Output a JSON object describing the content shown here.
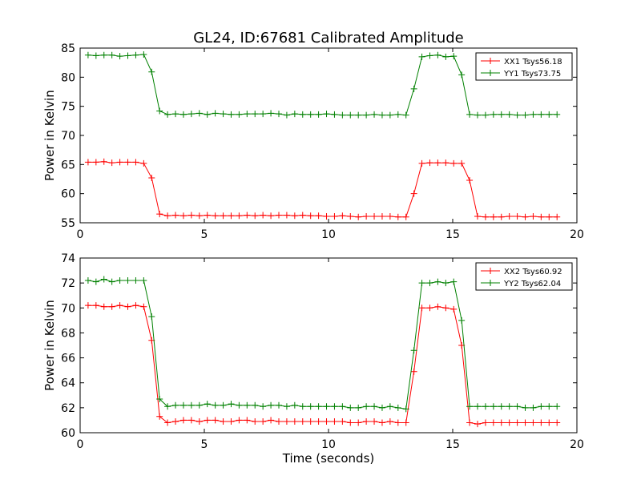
{
  "chart_data": [
    {
      "type": "line",
      "title": "GL24, ID:67681 Calibrated Amplitude",
      "xlabel": "",
      "ylabel": "Power in Kelvin",
      "xlim": [
        0,
        20
      ],
      "ylim": [
        55,
        85
      ],
      "xticks": [
        0,
        5,
        10,
        15,
        20
      ],
      "yticks": [
        55,
        60,
        65,
        70,
        75,
        80,
        85
      ],
      "legend_position": "top-right",
      "x": [
        0.32,
        0.64,
        0.96,
        1.28,
        1.6,
        1.92,
        2.24,
        2.56,
        2.88,
        3.2,
        3.52,
        3.84,
        4.16,
        4.48,
        4.8,
        5.12,
        5.44,
        5.76,
        6.08,
        6.4,
        6.72,
        7.04,
        7.36,
        7.68,
        8.0,
        8.32,
        8.64,
        8.96,
        9.28,
        9.6,
        9.92,
        10.24,
        10.56,
        10.88,
        11.2,
        11.52,
        11.84,
        12.16,
        12.48,
        12.8,
        13.12,
        13.44,
        13.76,
        14.08,
        14.4,
        14.72,
        15.04,
        15.36,
        15.68,
        16.0,
        16.32,
        16.64,
        16.96,
        17.28,
        17.6,
        17.92,
        18.24,
        18.56,
        18.88,
        19.2
      ],
      "series": [
        {
          "name": "XX1 Tsys56.18",
          "color": "#ff0000",
          "values": [
            65.4,
            65.4,
            65.5,
            65.3,
            65.4,
            65.4,
            65.4,
            65.2,
            62.7,
            56.5,
            56.2,
            56.3,
            56.2,
            56.3,
            56.2,
            56.3,
            56.2,
            56.2,
            56.2,
            56.2,
            56.3,
            56.2,
            56.3,
            56.2,
            56.3,
            56.3,
            56.2,
            56.3,
            56.2,
            56.2,
            56.1,
            56.1,
            56.2,
            56.1,
            56.0,
            56.1,
            56.1,
            56.1,
            56.1,
            56.0,
            56.0,
            60.0,
            65.2,
            65.3,
            65.3,
            65.3,
            65.2,
            65.2,
            62.3,
            56.1,
            56.0,
            56.0,
            56.0,
            56.1,
            56.1,
            56.0,
            56.1,
            56.0,
            56.0,
            56.0
          ]
        },
        {
          "name": "YY1 Tsys73.75",
          "color": "#008000",
          "values": [
            83.8,
            83.7,
            83.8,
            83.8,
            83.6,
            83.7,
            83.8,
            83.9,
            80.9,
            74.2,
            73.6,
            73.7,
            73.6,
            73.7,
            73.8,
            73.6,
            73.8,
            73.7,
            73.6,
            73.6,
            73.7,
            73.7,
            73.7,
            73.8,
            73.7,
            73.5,
            73.7,
            73.6,
            73.6,
            73.6,
            73.7,
            73.6,
            73.5,
            73.5,
            73.5,
            73.5,
            73.6,
            73.5,
            73.5,
            73.6,
            73.5,
            78.0,
            83.5,
            83.7,
            83.8,
            83.5,
            83.6,
            80.4,
            73.6,
            73.5,
            73.5,
            73.6,
            73.6,
            73.6,
            73.5,
            73.5,
            73.6,
            73.6,
            73.6,
            73.6
          ]
        }
      ]
    },
    {
      "type": "line",
      "title": "",
      "xlabel": "Time (seconds)",
      "ylabel": "Power in Kelvin",
      "xlim": [
        0,
        20
      ],
      "ylim": [
        60,
        74
      ],
      "xticks": [
        0,
        5,
        10,
        15,
        20
      ],
      "yticks": [
        60,
        62,
        64,
        66,
        68,
        70,
        72,
        74
      ],
      "legend_position": "top-right",
      "x": [
        0.32,
        0.64,
        0.96,
        1.28,
        1.6,
        1.92,
        2.24,
        2.56,
        2.88,
        3.2,
        3.52,
        3.84,
        4.16,
        4.48,
        4.8,
        5.12,
        5.44,
        5.76,
        6.08,
        6.4,
        6.72,
        7.04,
        7.36,
        7.68,
        8.0,
        8.32,
        8.64,
        8.96,
        9.28,
        9.6,
        9.92,
        10.24,
        10.56,
        10.88,
        11.2,
        11.52,
        11.84,
        12.16,
        12.48,
        12.8,
        13.12,
        13.44,
        13.76,
        14.08,
        14.4,
        14.72,
        15.04,
        15.36,
        15.68,
        16.0,
        16.32,
        16.64,
        16.96,
        17.28,
        17.6,
        17.92,
        18.24,
        18.56,
        18.88,
        19.2
      ],
      "series": [
        {
          "name": "XX2 Tsys60.92",
          "color": "#ff0000",
          "values": [
            70.2,
            70.2,
            70.1,
            70.1,
            70.2,
            70.1,
            70.2,
            70.1,
            67.4,
            61.3,
            60.8,
            60.9,
            61.0,
            61.0,
            60.9,
            61.0,
            61.0,
            60.9,
            60.9,
            61.0,
            61.0,
            60.9,
            60.9,
            61.0,
            60.9,
            60.9,
            60.9,
            60.9,
            60.9,
            60.9,
            60.9,
            60.9,
            60.9,
            60.8,
            60.8,
            60.9,
            60.9,
            60.8,
            60.9,
            60.8,
            60.8,
            64.9,
            70.0,
            70.0,
            70.1,
            70.0,
            69.9,
            67.0,
            60.8,
            60.7,
            60.8,
            60.8,
            60.8,
            60.8,
            60.8,
            60.8,
            60.8,
            60.8,
            60.8,
            60.8
          ]
        },
        {
          "name": "YY2 Tsys62.04",
          "color": "#008000",
          "values": [
            72.2,
            72.1,
            72.3,
            72.1,
            72.2,
            72.2,
            72.2,
            72.2,
            69.3,
            62.7,
            62.1,
            62.2,
            62.2,
            62.2,
            62.2,
            62.3,
            62.2,
            62.2,
            62.3,
            62.2,
            62.2,
            62.2,
            62.1,
            62.2,
            62.2,
            62.1,
            62.2,
            62.1,
            62.1,
            62.1,
            62.1,
            62.1,
            62.1,
            62.0,
            62.0,
            62.1,
            62.1,
            62.0,
            62.1,
            62.0,
            61.9,
            66.6,
            72.0,
            72.0,
            72.1,
            72.0,
            72.1,
            69.0,
            62.1,
            62.1,
            62.1,
            62.1,
            62.1,
            62.1,
            62.1,
            62.0,
            62.0,
            62.1,
            62.1,
            62.1
          ]
        }
      ]
    }
  ]
}
